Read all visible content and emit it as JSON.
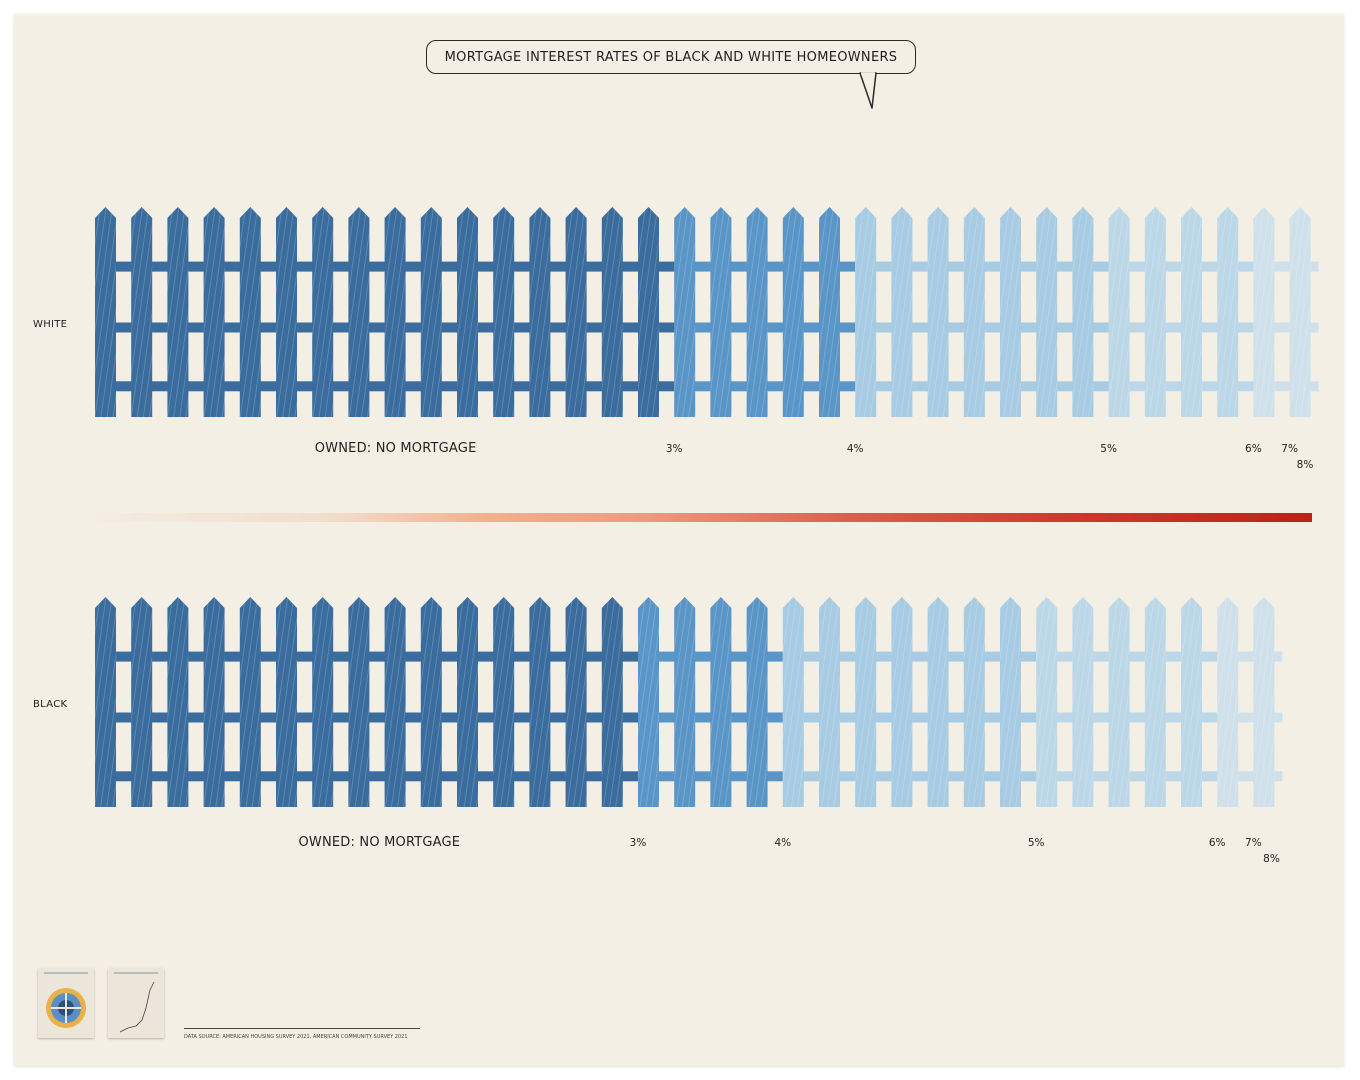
{
  "title": "MORTGAGE INTEREST RATES OF BLACK AND WHITE HOMEOWNERS",
  "source": "DATA SOURCE: AMERICAN HOUSING SURVEY 2021, AMERICAN COMMUNITY SURVEY 2021",
  "colors": {
    "fence_dark": "#3a6c9e",
    "fence_mid": "#5a95c8",
    "fence_light": "#a7cbe2",
    "fence_faint": "#cfe0ea",
    "colorbar_start": "#f3ede3",
    "colorbar_end": "#b8241c",
    "paper": "#f4efe4"
  },
  "chart_data": [
    {
      "type": "bar",
      "name": "WHITE",
      "unit": "pickets",
      "categories": [
        "OWNED: NO MORTGAGE",
        "3%",
        "4%",
        "5%",
        "6%",
        "7%",
        "8%"
      ],
      "values": [
        16,
        5,
        7,
        4,
        1,
        0.5,
        0.3
      ],
      "picket_shades": [
        "dark",
        "mid",
        "light",
        "lighter",
        "faint",
        "faint",
        "faint"
      ]
    },
    {
      "type": "bar",
      "name": "BLACK",
      "unit": "pickets",
      "categories": [
        "OWNED: NO MORTGAGE",
        "3%",
        "4%",
        "5%",
        "6%",
        "7%",
        "8%"
      ],
      "values": [
        15,
        4,
        7,
        5,
        1,
        0.5,
        0.3
      ],
      "picket_shades": [
        "dark",
        "mid",
        "light",
        "lighter",
        "faint",
        "faint",
        "faint"
      ]
    }
  ]
}
